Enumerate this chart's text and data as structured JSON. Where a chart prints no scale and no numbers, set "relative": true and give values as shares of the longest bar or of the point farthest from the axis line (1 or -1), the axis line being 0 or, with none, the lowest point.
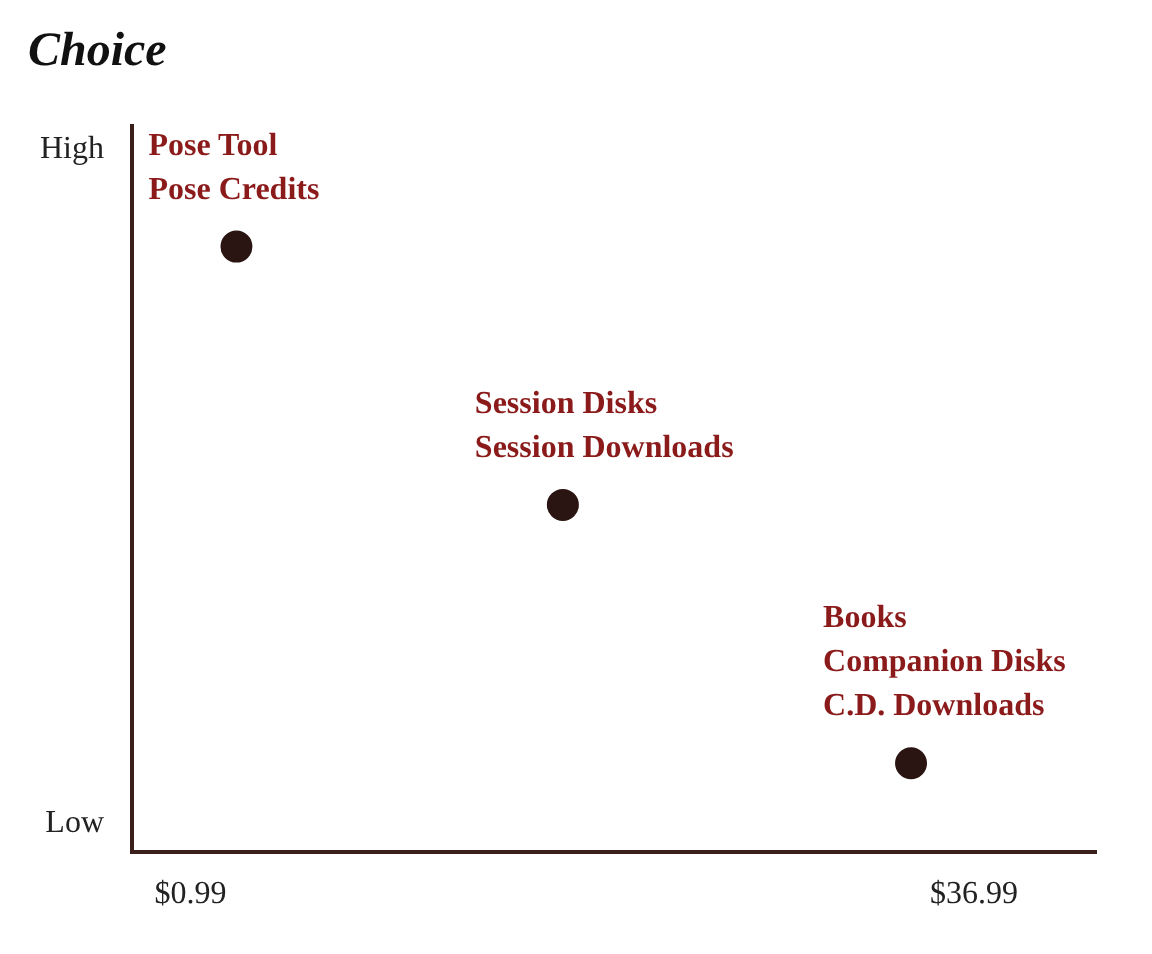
{
  "chart_data": {
    "type": "scatter",
    "title": "Choice",
    "relative": true,
    "x": [
      3.1,
      18.1,
      34.1
    ],
    "series": [
      {
        "color": "#2b1512",
        "values": [
          1,
          0.573,
          0.146
        ]
      }
    ],
    "xlim": [
      -1.7,
      42.6
    ],
    "xticks": [
      {
        "value": 0.99,
        "label": "$0.99"
      },
      {
        "value": 36.99,
        "label": "$36.99"
      }
    ],
    "grid": false,
    "legend": false,
    "marker": "circle",
    "annotations": [
      "High",
      "Low",
      {
        "text": "Pose Tool\nPose Credits",
        "x": 3.1,
        "y": 1
      },
      {
        "text": "Session Disks\nSession Downloads",
        "x": 18.1,
        "y": 0.573
      },
      {
        "text": "Books\nCompanion Disks\nC.D. Downloads",
        "x": 34.1,
        "y": 0.146
      }
    ]
  }
}
